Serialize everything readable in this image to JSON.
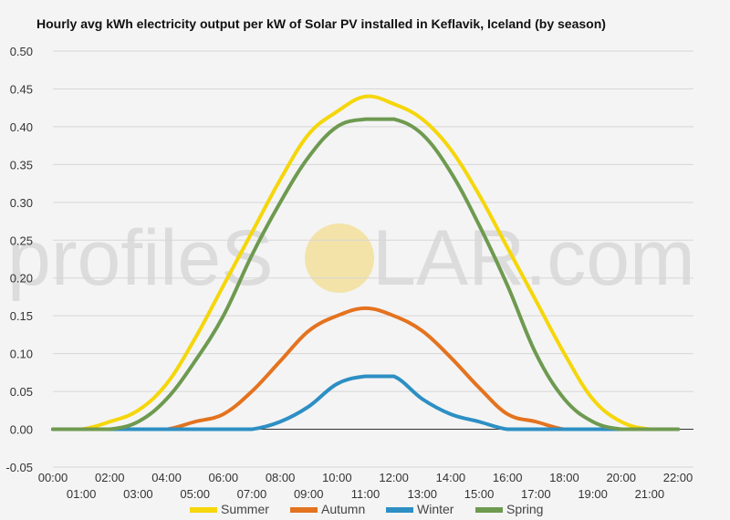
{
  "chart_data": {
    "type": "line",
    "title": "Hourly avg kWh electricity output per kW of Solar PV installed in Keflavik, Iceland (by season)",
    "xlabel": "",
    "ylabel": "",
    "ylim": [
      -0.05,
      0.5
    ],
    "yticks": [
      "-0.05",
      "0.00",
      "0.05",
      "0.10",
      "0.15",
      "0.20",
      "0.25",
      "0.30",
      "0.35",
      "0.40",
      "0.45",
      "0.50"
    ],
    "categories": [
      "00:00",
      "01:00",
      "02:00",
      "03:00",
      "04:00",
      "05:00",
      "06:00",
      "07:00",
      "08:00",
      "09:00",
      "10:00",
      "11:00",
      "12:00",
      "13:00",
      "14:00",
      "15:00",
      "16:00",
      "17:00",
      "18:00",
      "19:00",
      "20:00",
      "21:00",
      "22:00"
    ],
    "grid": true,
    "legend_position": "bottom",
    "series": [
      {
        "name": "Summer",
        "color": "#f5d60a",
        "values": [
          0,
          0,
          0.01,
          0.025,
          0.06,
          0.12,
          0.19,
          0.26,
          0.33,
          0.39,
          0.42,
          0.44,
          0.43,
          0.41,
          0.37,
          0.31,
          0.24,
          0.17,
          0.1,
          0.04,
          0.01,
          0,
          0
        ]
      },
      {
        "name": "Autumn",
        "color": "#e4731f",
        "values": [
          0,
          0,
          0,
          0,
          0,
          0.01,
          0.02,
          0.05,
          0.09,
          0.13,
          0.15,
          0.16,
          0.15,
          0.13,
          0.095,
          0.055,
          0.02,
          0.01,
          0,
          0,
          0,
          0,
          0
        ]
      },
      {
        "name": "Winter",
        "color": "#2d8fc4",
        "values": [
          0,
          0,
          0,
          0,
          0,
          0,
          0,
          0,
          0.01,
          0.03,
          0.06,
          0.07,
          0.07,
          0.04,
          0.02,
          0.01,
          0,
          0,
          0,
          0,
          0,
          0,
          0
        ]
      },
      {
        "name": "Spring",
        "color": "#6e9a50",
        "values": [
          0,
          0,
          0,
          0.01,
          0.04,
          0.09,
          0.15,
          0.23,
          0.3,
          0.36,
          0.4,
          0.41,
          0.41,
          0.39,
          0.34,
          0.27,
          0.19,
          0.1,
          0.04,
          0.01,
          0,
          0,
          0
        ]
      }
    ]
  },
  "watermark": {
    "text_left": "profileS",
    "text_right": "LAR.com",
    "sun_color": "#f3e3a8"
  }
}
